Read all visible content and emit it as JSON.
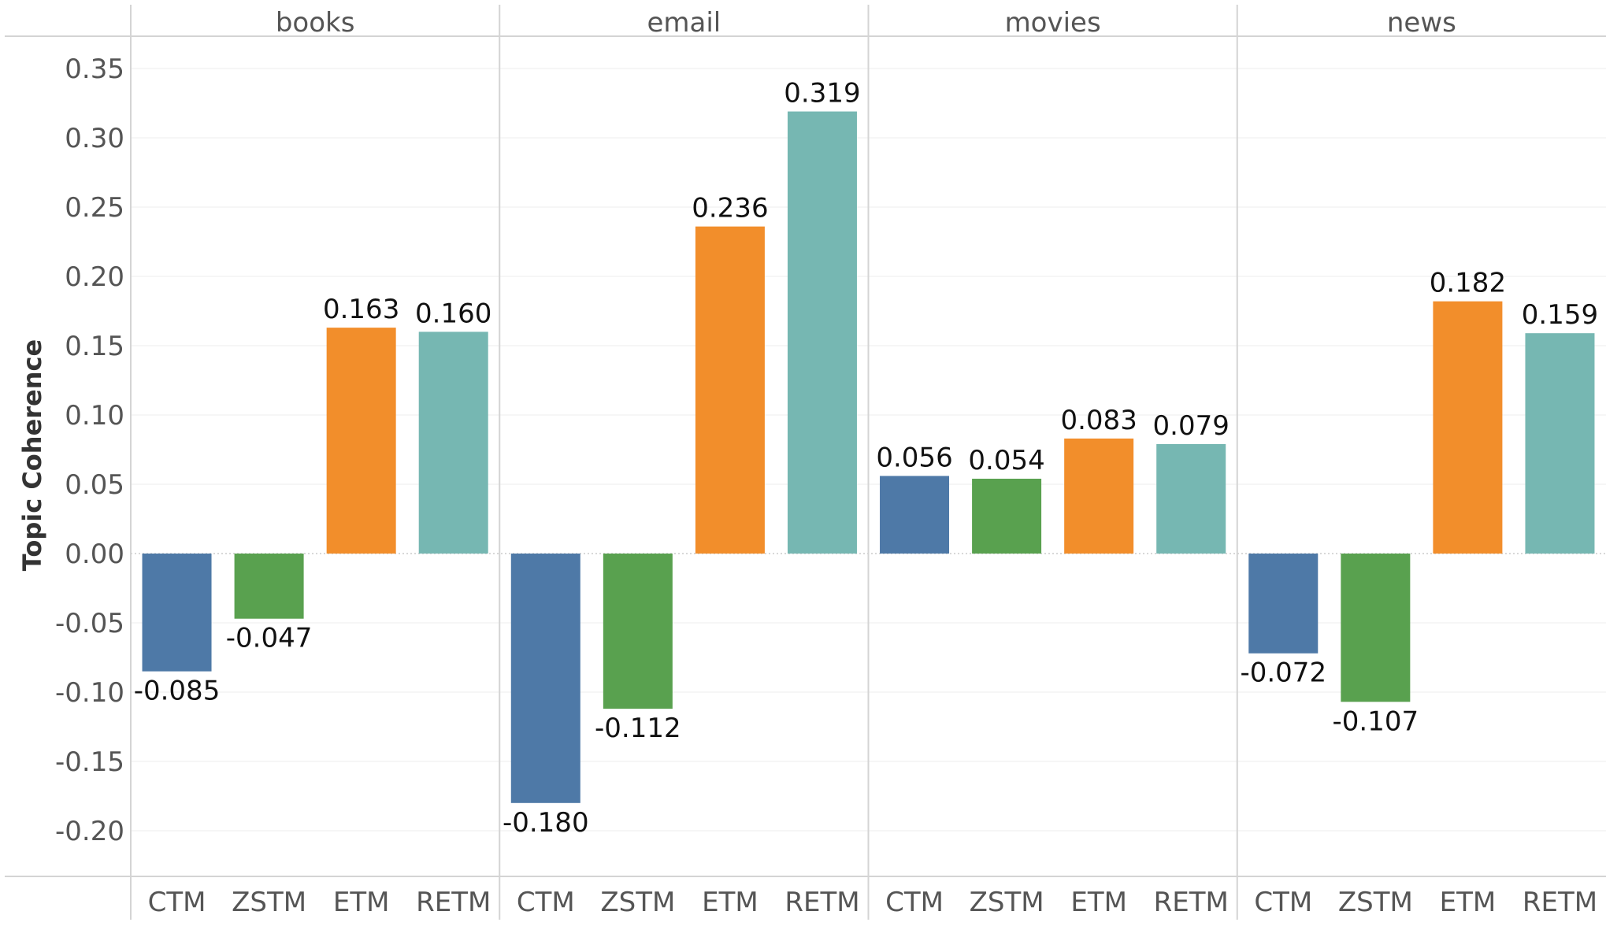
{
  "chart_data": {
    "type": "bar",
    "ylabel": "Topic Coherence",
    "ylim": [
      -0.235,
      0.355
    ],
    "yticks": [
      0.35,
      0.3,
      0.25,
      0.2,
      0.15,
      0.1,
      0.05,
      0.0,
      -0.05,
      -0.1,
      -0.15,
      -0.2
    ],
    "ytick_labels": [
      "0.35",
      "0.30",
      "0.25",
      "0.20",
      "0.15",
      "0.10",
      "0.05",
      "0.00",
      "-0.05",
      "-0.10",
      "-0.15",
      "-0.20"
    ],
    "categories": [
      "CTM",
      "ZSTM",
      "ETM",
      "RETM"
    ],
    "colors": {
      "CTM": "#4e79a7",
      "ZSTM": "#59a14f",
      "ETM": "#f28e2b",
      "RETM": "#76b7b2"
    },
    "grid": true,
    "facets": [
      {
        "name": "books",
        "values": [
          -0.085,
          -0.047,
          0.163,
          0.16
        ],
        "labels": [
          "-0.085",
          "-0.047",
          "0.163",
          "0.160"
        ]
      },
      {
        "name": "email",
        "values": [
          -0.18,
          -0.112,
          0.236,
          0.319
        ],
        "labels": [
          "-0.180",
          "-0.112",
          "0.236",
          "0.319"
        ]
      },
      {
        "name": "movies",
        "values": [
          0.056,
          0.054,
          0.083,
          0.079
        ],
        "labels": [
          "0.056",
          "0.054",
          "0.083",
          "0.079"
        ]
      },
      {
        "name": "news",
        "values": [
          -0.072,
          -0.107,
          0.182,
          0.159
        ],
        "labels": [
          "-0.072",
          "-0.107",
          "0.182",
          "0.159"
        ]
      }
    ]
  }
}
